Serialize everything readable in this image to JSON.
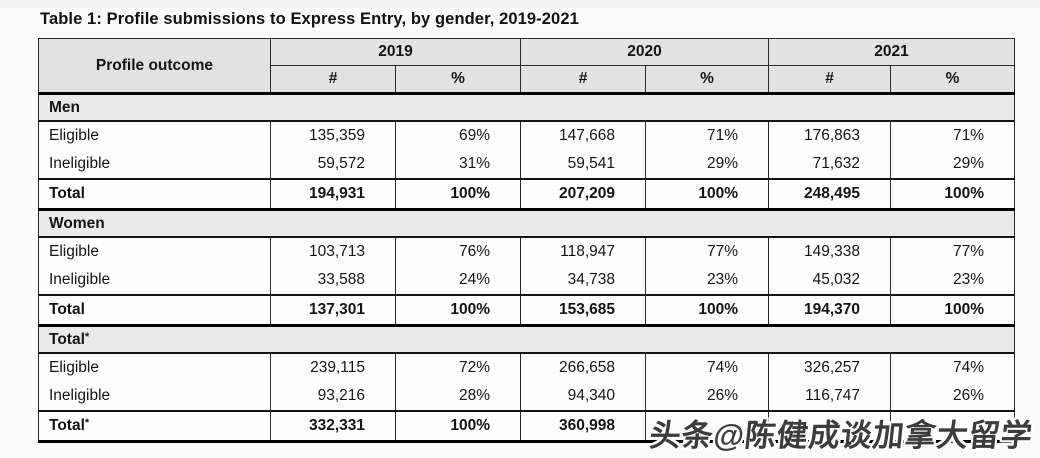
{
  "title": "Table 1: Profile submissions to Express Entry, by gender, 2019-2021",
  "table": {
    "corner_header": "Profile outcome",
    "year_headers": [
      "2019",
      "2020",
      "2021"
    ],
    "count_symbol": "#",
    "percent_symbol": "%",
    "sections": [
      {
        "label": "Men",
        "rows": [
          {
            "label": "Eligible",
            "total": false,
            "values": [
              "135,359",
              "69%",
              "147,668",
              "71%",
              "176,863",
              "71%"
            ]
          },
          {
            "label": "Ineligible",
            "total": false,
            "values": [
              "59,572",
              "31%",
              "59,541",
              "29%",
              "71,632",
              "29%"
            ]
          },
          {
            "label": "Total",
            "total": true,
            "values": [
              "194,931",
              "100%",
              "207,209",
              "100%",
              "248,495",
              "100%"
            ]
          }
        ]
      },
      {
        "label": "Women",
        "rows": [
          {
            "label": "Eligible",
            "total": false,
            "values": [
              "103,713",
              "76%",
              "118,947",
              "77%",
              "149,338",
              "77%"
            ]
          },
          {
            "label": "Ineligible",
            "total": false,
            "values": [
              "33,588",
              "24%",
              "34,738",
              "23%",
              "45,032",
              "23%"
            ]
          },
          {
            "label": "Total",
            "total": true,
            "values": [
              "137,301",
              "100%",
              "153,685",
              "100%",
              "194,370",
              "100%"
            ]
          }
        ]
      },
      {
        "label": "Total*",
        "rows": [
          {
            "label": "Eligible",
            "total": false,
            "values": [
              "239,115",
              "72%",
              "266,658",
              "74%",
              "326,257",
              "74%"
            ]
          },
          {
            "label": "Ineligible",
            "total": false,
            "values": [
              "93,216",
              "28%",
              "94,340",
              "26%",
              "116,747",
              "26%"
            ]
          },
          {
            "label": "Total*",
            "total": true,
            "values": [
              "332,331",
              "100%",
              "360,998",
              "",
              "",
              ""
            ]
          }
        ]
      }
    ]
  },
  "watermark": {
    "text": "头条@陈健成谈加拿大留学"
  },
  "colors": {
    "header_bg": "#e2e2e2",
    "section_bg": "#eaeaea",
    "border": "#000000",
    "watermark_text": "#3c3c3c"
  }
}
